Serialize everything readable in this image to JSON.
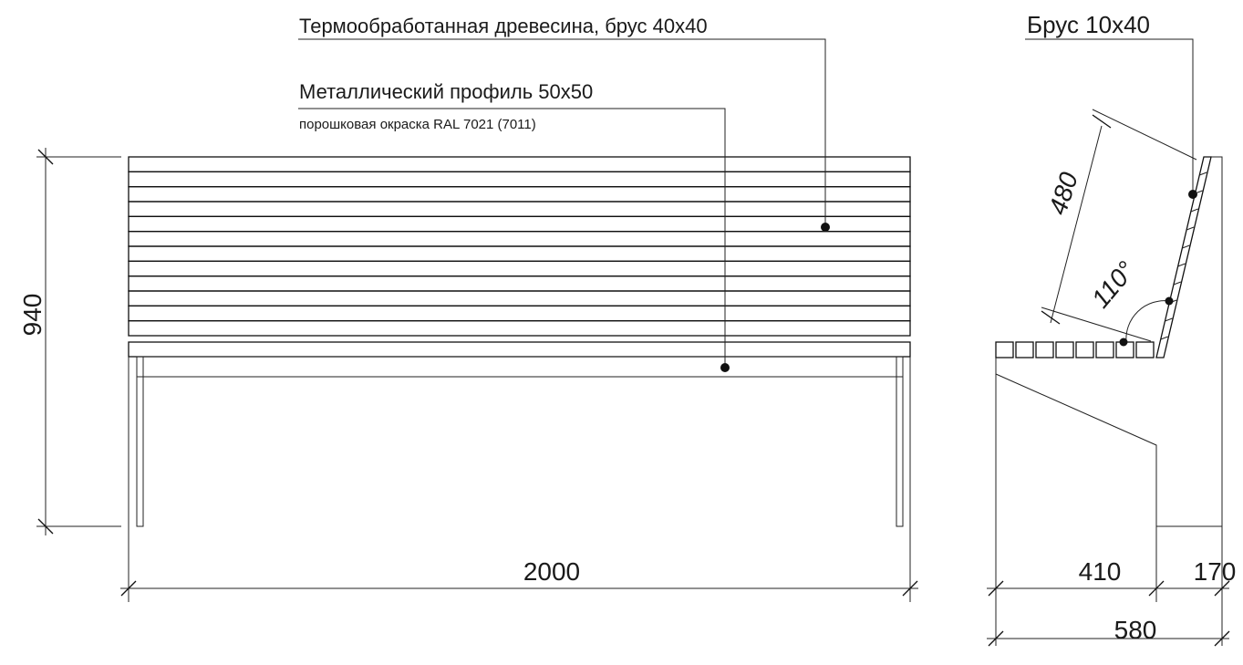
{
  "labels": {
    "wood": "Термообработанная древесина, брус 40х40",
    "profile": "Металлический профиль 50х50",
    "coating": "порошковая окраска RAL 7021 (7011)",
    "slat": "Брус 10х40"
  },
  "dimensions": {
    "height": 940,
    "length": 2000,
    "back_length": 480,
    "angle": "110°",
    "seat_depth": 410,
    "leg_depth": 170,
    "total_depth": 580
  }
}
